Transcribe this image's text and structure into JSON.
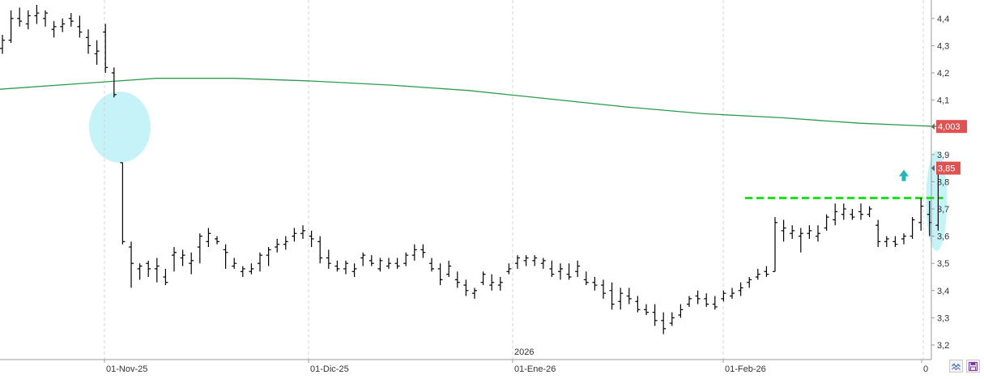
{
  "chart_data": {
    "type": "ohlc",
    "title": "",
    "xlabel": "",
    "ylabel": "",
    "ylim": [
      3.17,
      4.47
    ],
    "grid": false,
    "x_tick_labels": [
      "01-Nov-25",
      "01-Dic-25",
      "01-Ene-26",
      "01-Feb-26",
      "0"
    ],
    "year_marker": "2026",
    "y_tick_labels": [
      "4,4",
      "4,3",
      "4,2",
      "4,1",
      "4",
      "3,9",
      "3,8",
      "3,7",
      "3,6",
      "3,5",
      "3,4",
      "3,3",
      "3,2"
    ],
    "y_ticks": [
      4.4,
      4.3,
      4.2,
      4.1,
      4.0,
      3.9,
      3.8,
      3.7,
      3.6,
      3.5,
      3.4,
      3.3,
      3.2
    ],
    "price_tags": [
      {
        "label": "4,003",
        "value": 4.003,
        "color": "#e05252"
      },
      {
        "label": "3,85",
        "value": 3.85,
        "color": "#e05252"
      }
    ],
    "moving_average": {
      "color": "#2e9a4e",
      "values": [
        4.14,
        4.16,
        4.18,
        4.18,
        4.17,
        4.155,
        4.135,
        4.105,
        4.075,
        4.05,
        4.035,
        4.015,
        4.003
      ]
    },
    "resistance": {
      "value": 3.74,
      "color": "#22dd22"
    },
    "highlight_color": "#c6f3f8",
    "arrow_color": "#22b7b7",
    "bars": [
      [
        4.29,
        4.34,
        4.27,
        4.32
      ],
      [
        4.32,
        4.43,
        4.31,
        4.4
      ],
      [
        4.4,
        4.44,
        4.37,
        4.39
      ],
      [
        4.38,
        4.43,
        4.36,
        4.41
      ],
      [
        4.41,
        4.45,
        4.38,
        4.42
      ],
      [
        4.4,
        4.43,
        4.37,
        4.42
      ],
      [
        4.36,
        4.39,
        4.33,
        4.37
      ],
      [
        4.37,
        4.4,
        4.35,
        4.38
      ],
      [
        4.4,
        4.42,
        4.37,
        4.39
      ],
      [
        4.37,
        4.41,
        4.33,
        4.35
      ],
      [
        4.33,
        4.36,
        4.27,
        4.3
      ],
      [
        4.27,
        4.32,
        4.23,
        4.28
      ],
      [
        4.35,
        4.38,
        4.2,
        4.22
      ],
      [
        4.2,
        4.22,
        4.11,
        4.12
      ],
      [
        3.87,
        3.87,
        3.57,
        3.58
      ],
      [
        3.56,
        3.58,
        3.41,
        3.5
      ],
      [
        3.48,
        3.5,
        3.44,
        3.49
      ],
      [
        3.5,
        3.51,
        3.45,
        3.48
      ],
      [
        3.48,
        3.52,
        3.43,
        3.49
      ],
      [
        3.45,
        3.48,
        3.42,
        3.43
      ],
      [
        3.53,
        3.56,
        3.47,
        3.54
      ],
      [
        3.52,
        3.55,
        3.49,
        3.53
      ],
      [
        3.5,
        3.54,
        3.46,
        3.51
      ],
      [
        3.56,
        3.61,
        3.5,
        3.6
      ],
      [
        3.58,
        3.63,
        3.56,
        3.61
      ],
      [
        3.59,
        3.6,
        3.57,
        3.58
      ],
      [
        3.55,
        3.57,
        3.48,
        3.54
      ],
      [
        3.49,
        3.52,
        3.48,
        3.5
      ],
      [
        3.47,
        3.49,
        3.45,
        3.48
      ],
      [
        3.47,
        3.5,
        3.46,
        3.48
      ],
      [
        3.5,
        3.54,
        3.47,
        3.53
      ],
      [
        3.53,
        3.56,
        3.49,
        3.55
      ],
      [
        3.56,
        3.59,
        3.54,
        3.57
      ],
      [
        3.57,
        3.6,
        3.55,
        3.58
      ],
      [
        3.6,
        3.63,
        3.58,
        3.61
      ],
      [
        3.61,
        3.64,
        3.59,
        3.62
      ],
      [
        3.6,
        3.62,
        3.56,
        3.59
      ],
      [
        3.58,
        3.6,
        3.5,
        3.52
      ],
      [
        3.52,
        3.55,
        3.48,
        3.5
      ],
      [
        3.49,
        3.51,
        3.47,
        3.48
      ],
      [
        3.48,
        3.51,
        3.46,
        3.5
      ],
      [
        3.47,
        3.5,
        3.45,
        3.48
      ],
      [
        3.52,
        3.54,
        3.49,
        3.53
      ],
      [
        3.51,
        3.53,
        3.49,
        3.5
      ],
      [
        3.48,
        3.52,
        3.47,
        3.51
      ],
      [
        3.49,
        3.52,
        3.48,
        3.5
      ],
      [
        3.5,
        3.52,
        3.48,
        3.49
      ],
      [
        3.5,
        3.54,
        3.49,
        3.53
      ],
      [
        3.53,
        3.57,
        3.51,
        3.55
      ],
      [
        3.55,
        3.57,
        3.52,
        3.54
      ],
      [
        3.5,
        3.52,
        3.47,
        3.48
      ],
      [
        3.48,
        3.5,
        3.42,
        3.44
      ],
      [
        3.46,
        3.51,
        3.45,
        3.49
      ],
      [
        3.44,
        3.47,
        3.41,
        3.43
      ],
      [
        3.42,
        3.44,
        3.38,
        3.4
      ],
      [
        3.39,
        3.41,
        3.37,
        3.4
      ],
      [
        3.43,
        3.47,
        3.42,
        3.46
      ],
      [
        3.42,
        3.46,
        3.4,
        3.43
      ],
      [
        3.42,
        3.45,
        3.4,
        3.43
      ],
      [
        3.47,
        3.5,
        3.46,
        3.48
      ],
      [
        3.5,
        3.53,
        3.48,
        3.52
      ],
      [
        3.51,
        3.53,
        3.49,
        3.52
      ],
      [
        3.51,
        3.53,
        3.49,
        3.52
      ],
      [
        3.5,
        3.52,
        3.48,
        3.51
      ],
      [
        3.48,
        3.51,
        3.45,
        3.46
      ],
      [
        3.47,
        3.5,
        3.44,
        3.48
      ],
      [
        3.46,
        3.5,
        3.44,
        3.45
      ],
      [
        3.47,
        3.51,
        3.45,
        3.49
      ],
      [
        3.44,
        3.47,
        3.42,
        3.43
      ],
      [
        3.43,
        3.45,
        3.4,
        3.42
      ],
      [
        3.42,
        3.44,
        3.37,
        3.39
      ],
      [
        3.4,
        3.43,
        3.33,
        3.35
      ],
      [
        3.36,
        3.41,
        3.33,
        3.39
      ],
      [
        3.38,
        3.41,
        3.35,
        3.37
      ],
      [
        3.36,
        3.38,
        3.32,
        3.33
      ],
      [
        3.33,
        3.35,
        3.31,
        3.32
      ],
      [
        3.32,
        3.35,
        3.27,
        3.29
      ],
      [
        3.29,
        3.32,
        3.24,
        3.26
      ],
      [
        3.28,
        3.32,
        3.27,
        3.3
      ],
      [
        3.31,
        3.35,
        3.3,
        3.33
      ],
      [
        3.35,
        3.38,
        3.34,
        3.37
      ],
      [
        3.38,
        3.4,
        3.35,
        3.37
      ],
      [
        3.37,
        3.39,
        3.34,
        3.35
      ],
      [
        3.35,
        3.38,
        3.33,
        3.34
      ],
      [
        3.37,
        3.4,
        3.36,
        3.39
      ],
      [
        3.38,
        3.41,
        3.37,
        3.39
      ],
      [
        3.4,
        3.43,
        3.38,
        3.41
      ],
      [
        3.43,
        3.45,
        3.41,
        3.44
      ],
      [
        3.45,
        3.48,
        3.44,
        3.46
      ],
      [
        3.47,
        3.49,
        3.45,
        3.46
      ],
      [
        3.47,
        3.67,
        3.47,
        3.65
      ],
      [
        3.62,
        3.66,
        3.58,
        3.63
      ],
      [
        3.61,
        3.64,
        3.59,
        3.62
      ],
      [
        3.6,
        3.63,
        3.54,
        3.61
      ],
      [
        3.61,
        3.64,
        3.59,
        3.62
      ],
      [
        3.6,
        3.64,
        3.58,
        3.61
      ],
      [
        3.63,
        3.68,
        3.62,
        3.67
      ],
      [
        3.66,
        3.72,
        3.64,
        3.69
      ],
      [
        3.68,
        3.72,
        3.66,
        3.7
      ],
      [
        3.68,
        3.7,
        3.66,
        3.67
      ],
      [
        3.69,
        3.72,
        3.66,
        3.68
      ],
      [
        3.68,
        3.71,
        3.67,
        3.7
      ],
      [
        3.64,
        3.66,
        3.56,
        3.58
      ],
      [
        3.58,
        3.6,
        3.56,
        3.59
      ],
      [
        3.58,
        3.6,
        3.56,
        3.57
      ],
      [
        3.59,
        3.61,
        3.57,
        3.6
      ],
      [
        3.6,
        3.67,
        3.59,
        3.66
      ],
      [
        3.65,
        3.74,
        3.62,
        3.71
      ],
      [
        3.68,
        3.73,
        3.6,
        3.65
      ],
      [
        3.64,
        3.86,
        3.62,
        3.85
      ]
    ]
  }
}
